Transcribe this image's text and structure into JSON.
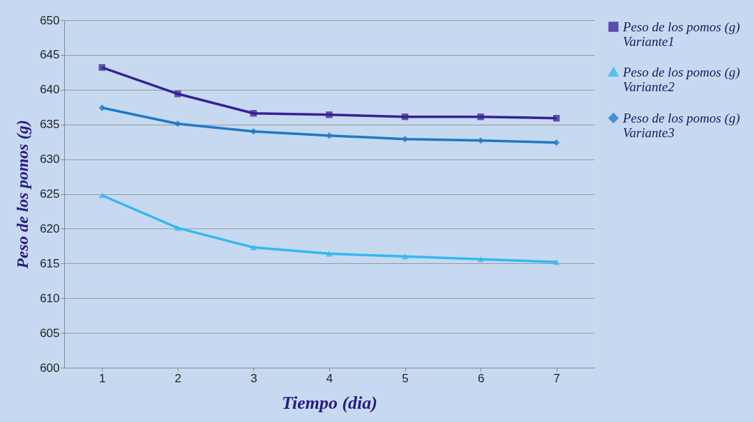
{
  "chart_data": {
    "type": "line",
    "xlabel": "Tiempo (dia)",
    "ylabel": "Peso de los pomos (g)",
    "categories": [
      "1",
      "2",
      "3",
      "4",
      "5",
      "6",
      "7"
    ],
    "series": [
      {
        "name": "Peso de los pomos (g) Variante1",
        "color": "#3a1f96",
        "marker": "square",
        "values": [
          643.2,
          639.4,
          636.6,
          636.4,
          636.1,
          636.1,
          635.9
        ]
      },
      {
        "name": "Peso de los pomos (g) Variante2",
        "color": "#33b8f0",
        "marker": "triangle",
        "values": [
          624.8,
          620.1,
          617.3,
          616.4,
          616.0,
          615.6,
          615.2
        ]
      },
      {
        "name": "Peso de los pomos (g) Variante3",
        "color": "#1f78c8",
        "marker": "diamond",
        "values": [
          637.4,
          635.1,
          634.0,
          633.4,
          632.9,
          632.7,
          632.4
        ]
      }
    ],
    "ylim": [
      600,
      650
    ],
    "yticks": [
      600,
      605,
      610,
      615,
      620,
      625,
      630,
      635,
      640,
      645,
      650
    ],
    "grid": "y",
    "legend": "right",
    "line_style": "solid"
  }
}
